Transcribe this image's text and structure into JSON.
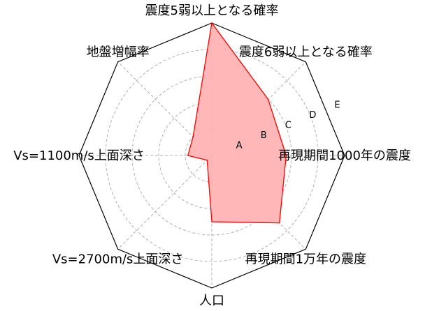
{
  "chart_data": {
    "type": "radar",
    "axes": [
      "震度5弱以上となる確率",
      "震度6弱以上となる確率",
      "再現期間1000年の震度",
      "再現期間1万年の震度",
      "人口",
      "Vs=2700m/s上面深さ",
      "Vs=1100m/s上面深さ",
      "地盤増幅率"
    ],
    "rings": [
      "A",
      "B",
      "C",
      "D",
      "E"
    ],
    "values": [
      5.0,
      3.0,
      2.8,
      3.6,
      2.5,
      0.25,
      0.9,
      1.0
    ],
    "range": [
      0,
      5
    ],
    "grid": true,
    "fill_color": "#ffb3b3",
    "line_color": "#ff0000",
    "frame_color": "#000000",
    "grid_color": "#b0b0b0"
  }
}
